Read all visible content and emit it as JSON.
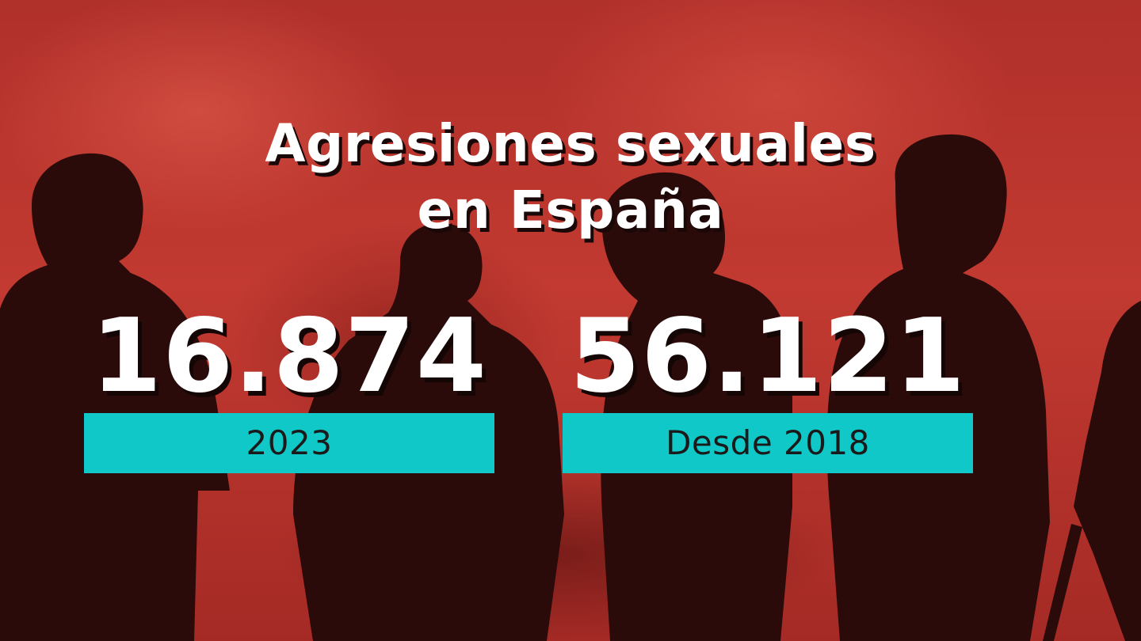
{
  "title": {
    "line1": "Agresiones sexuales",
    "line2": "en España"
  },
  "stats": [
    {
      "value": "16.874",
      "label": "2023"
    },
    {
      "value": "56.121",
      "label": "Desde 2018"
    }
  ],
  "colors": {
    "background": "#b8322c",
    "silhouette": "#2a0a0a",
    "label_bar": "#10c8c8",
    "number_text": "#ffffff",
    "label_text": "#1a1a1a"
  }
}
